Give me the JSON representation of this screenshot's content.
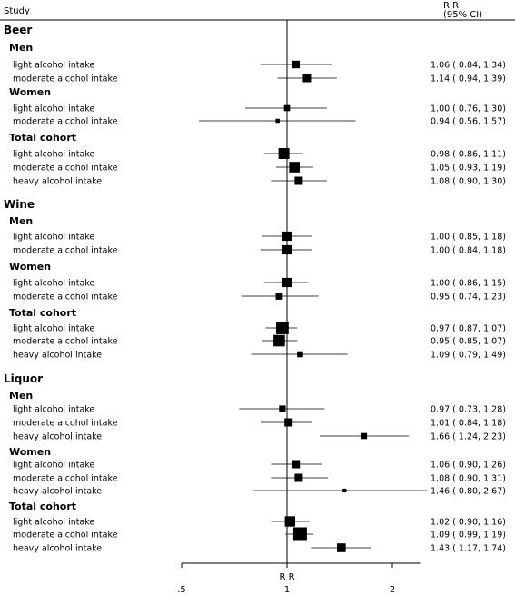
{
  "chart_data": {
    "type": "forest",
    "header": {
      "study": "Study",
      "rr": "R R",
      "ci": "(95% CI)"
    },
    "xlabel": "R R",
    "x_ticks": [
      {
        "value": 0.5,
        "label": ".5"
      },
      {
        "value": 1,
        "label": "1"
      },
      {
        "value": 2,
        "label": "2"
      }
    ],
    "reference_value": 1,
    "xlim": [
      0.5,
      2.4
    ],
    "rows": [
      {
        "kind": "group",
        "label": "Beer"
      },
      {
        "kind": "subgroup",
        "label": "Men"
      },
      {
        "kind": "estimate",
        "label": "light alcohol intake",
        "rr": 1.06,
        "lo": 0.84,
        "hi": 1.34,
        "text": "1.06 ( 0.84, 1.34)",
        "weight": 0.45
      },
      {
        "kind": "estimate",
        "label": "moderate alcohol intake",
        "rr": 1.14,
        "lo": 0.94,
        "hi": 1.39,
        "text": "1.14 ( 0.94, 1.39)",
        "weight": 0.5
      },
      {
        "kind": "subgroup",
        "label": "Women"
      },
      {
        "kind": "estimate",
        "label": "light alcohol intake",
        "rr": 1.0,
        "lo": 0.76,
        "hi": 1.3,
        "text": "1.00 ( 0.76, 1.30)",
        "weight": 0.3
      },
      {
        "kind": "estimate",
        "label": "moderate alcohol intake",
        "rr": 0.94,
        "lo": 0.56,
        "hi": 1.57,
        "text": "0.94 ( 0.56, 1.57)",
        "weight": 0.12
      },
      {
        "kind": "subgroup",
        "label": "Total cohort"
      },
      {
        "kind": "estimate",
        "label": "light alcohol intake",
        "rr": 0.98,
        "lo": 0.86,
        "hi": 1.11,
        "text": "0.98 ( 0.86, 1.11)",
        "weight": 0.75
      },
      {
        "kind": "estimate",
        "label": "moderate alcohol intake",
        "rr": 1.05,
        "lo": 0.93,
        "hi": 1.19,
        "text": "1.05 ( 0.93, 1.19)",
        "weight": 0.72
      },
      {
        "kind": "estimate",
        "label": "heavy alcohol intake",
        "rr": 1.08,
        "lo": 0.9,
        "hi": 1.3,
        "text": "1.08 ( 0.90, 1.30)",
        "weight": 0.5
      },
      {
        "kind": "group",
        "label": "Wine"
      },
      {
        "kind": "subgroup",
        "label": "Men"
      },
      {
        "kind": "estimate",
        "label": "light alcohol intake",
        "rr": 1.0,
        "lo": 0.85,
        "hi": 1.18,
        "text": "1.00 ( 0.85, 1.18)",
        "weight": 0.6
      },
      {
        "kind": "estimate",
        "label": "moderate alcohol intake",
        "rr": 1.0,
        "lo": 0.84,
        "hi": 1.18,
        "text": "1.00 ( 0.84, 1.18)",
        "weight": 0.6
      },
      {
        "kind": "subgroup",
        "label": "Women"
      },
      {
        "kind": "estimate",
        "label": "light alcohol intake",
        "rr": 1.0,
        "lo": 0.86,
        "hi": 1.15,
        "text": "1.00 ( 0.86, 1.15)",
        "weight": 0.6
      },
      {
        "kind": "estimate",
        "label": "moderate alcohol intake",
        "rr": 0.95,
        "lo": 0.74,
        "hi": 1.23,
        "text": "0.95 ( 0.74, 1.23)",
        "weight": 0.4
      },
      {
        "kind": "subgroup",
        "label": "Total cohort"
      },
      {
        "kind": "estimate",
        "label": "light alcohol intake",
        "rr": 0.97,
        "lo": 0.87,
        "hi": 1.07,
        "text": "0.97 ( 0.87, 1.07)",
        "weight": 0.9
      },
      {
        "kind": "estimate",
        "label": "moderate alcohol intake",
        "rr": 0.95,
        "lo": 0.85,
        "hi": 1.07,
        "text": "0.95 ( 0.85, 1.07)",
        "weight": 0.8
      },
      {
        "kind": "estimate",
        "label": "heavy alcohol intake",
        "rr": 1.09,
        "lo": 0.79,
        "hi": 1.49,
        "text": "1.09 ( 0.79, 1.49)",
        "weight": 0.3
      },
      {
        "kind": "group",
        "label": "Liquor"
      },
      {
        "kind": "subgroup",
        "label": "Men"
      },
      {
        "kind": "estimate",
        "label": "light alcohol intake",
        "rr": 0.97,
        "lo": 0.73,
        "hi": 1.28,
        "text": "0.97 ( 0.73, 1.28)",
        "weight": 0.35
      },
      {
        "kind": "estimate",
        "label": "moderate alcohol intake",
        "rr": 1.01,
        "lo": 0.84,
        "hi": 1.18,
        "text": "1.01 ( 0.84, 1.18)",
        "weight": 0.5
      },
      {
        "kind": "estimate",
        "label": "heavy alcohol intake",
        "rr": 1.66,
        "lo": 1.24,
        "hi": 2.23,
        "text": "1.66 ( 1.24, 2.23)",
        "weight": 0.3
      },
      {
        "kind": "subgroup",
        "label": "Women"
      },
      {
        "kind": "estimate",
        "label": "light alcohol intake",
        "rr": 1.06,
        "lo": 0.9,
        "hi": 1.26,
        "text": "1.06 ( 0.90, 1.26)",
        "weight": 0.5
      },
      {
        "kind": "estimate",
        "label": "moderate alcohol intake",
        "rr": 1.08,
        "lo": 0.9,
        "hi": 1.31,
        "text": "1.08 ( 0.90, 1.31)",
        "weight": 0.5
      },
      {
        "kind": "estimate",
        "label": "heavy alcohol intake",
        "rr": 1.46,
        "lo": 0.8,
        "hi": 2.67,
        "text": "1.46 ( 0.80, 2.67)",
        "weight": 0.1
      },
      {
        "kind": "subgroup",
        "label": "Total cohort"
      },
      {
        "kind": "estimate",
        "label": "light alcohol intake",
        "rr": 1.02,
        "lo": 0.9,
        "hi": 1.16,
        "text": "1.02 ( 0.90, 1.16)",
        "weight": 0.7
      },
      {
        "kind": "estimate",
        "label": "moderate alcohol intake",
        "rr": 1.09,
        "lo": 0.99,
        "hi": 1.19,
        "text": "1.09 ( 0.99, 1.19)",
        "weight": 1.0
      },
      {
        "kind": "estimate",
        "label": "heavy alcohol intake",
        "rr": 1.43,
        "lo": 1.17,
        "hi": 1.74,
        "text": "1.43 ( 1.17, 1.74)",
        "weight": 0.55
      }
    ]
  }
}
